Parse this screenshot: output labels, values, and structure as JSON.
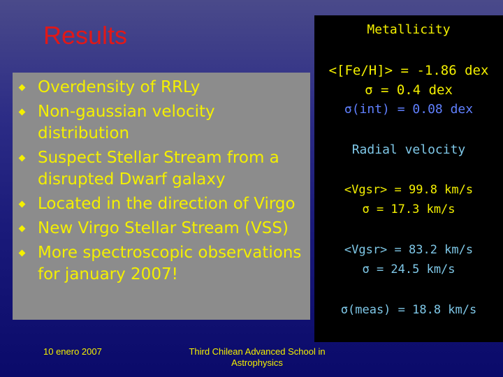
{
  "slide": {
    "title": "Results",
    "bullets": [
      "Overdensity of RRLy",
      "Non-gaussian velocity distribution",
      "Suspect Stellar Stream from a disrupted Dwarf galaxy",
      "Located in the direction of Virgo",
      "New Virgo Stellar Stream (VSS)",
      "More spectroscopic observations for january 2007!"
    ],
    "panel": {
      "metallicity_heading": "Metallicity",
      "feh": "<[Fe/H]> = -1.86 dex",
      "sigma": "σ = 0.4 dex",
      "sigma_int": "σ(int) = 0.08 dex",
      "radial_heading": "Radial velocity",
      "vgsr1": "<Vgsr> = 99.8 km/s",
      "sigma1": "σ = 17.3 km/s",
      "vgsr2": "<Vgsr> = 83.2 km/s",
      "sigma2": "σ = 24.5 km/s",
      "sigma_meas": "σ(meas) = 18.8 km/s"
    },
    "footer": {
      "date": "10 enero 2007",
      "school": "Third Chilean Advanced School in Astrophysics"
    },
    "colors": {
      "title": "#e01818",
      "text": "#f4f000",
      "panel_bg": "#000000",
      "bullet_box": "#8c8c8c"
    }
  }
}
